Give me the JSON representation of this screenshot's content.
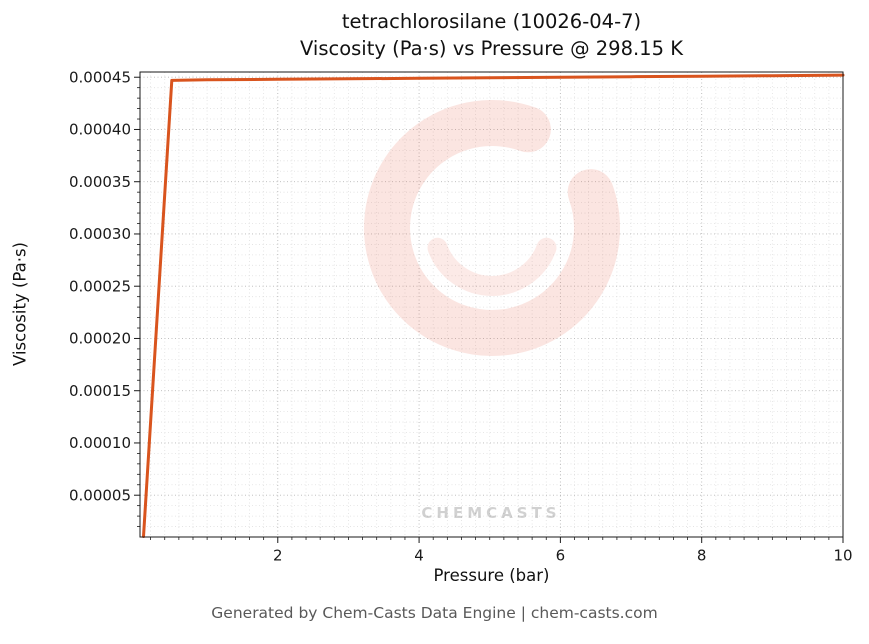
{
  "header": {
    "title_line1": "tetrachlorosilane (10026-04-7)",
    "title_line2": "Viscosity (Pa·s) vs Pressure @ 298.15 K"
  },
  "footer": {
    "text": "Generated by Chem-Casts Data Engine | chem-casts.com"
  },
  "watermark": {
    "text": "CHEMCASTS",
    "logo": "chemcasts-c-logo",
    "color": "#e75b47",
    "text_opacity": 0.2,
    "logo_opacity": 0.16
  },
  "chart_data": {
    "type": "line",
    "title": "tetrachlorosilane (10026-04-7) Viscosity (Pa·s) vs Pressure @ 298.15 K",
    "xlabel": "Pressure (bar)",
    "ylabel": "Viscosity (Pa·s)",
    "xlim": [
      0.05,
      10
    ],
    "ylim": [
      1e-05,
      0.000455
    ],
    "x_ticks": [
      2,
      4,
      6,
      8,
      10
    ],
    "y_ticks": [
      5e-05,
      0.0001,
      0.00015,
      0.0002,
      0.00025,
      0.0003,
      0.00035,
      0.0004,
      0.00045
    ],
    "x_minor_step": 0.2,
    "y_minor_step": 1e-05,
    "grid": true,
    "legend": "none",
    "line_color": "#d9541e",
    "line_width": 3,
    "series": [
      {
        "name": "viscosity",
        "x": [
          0.1,
          0.5,
          1,
          2,
          3,
          4,
          5,
          6,
          7,
          8,
          9,
          10
        ],
        "y": [
          1.05e-05,
          0.000447,
          0.0004475,
          0.000448,
          0.0004485,
          0.000449,
          0.0004495,
          0.00045,
          0.0004505,
          0.000451,
          0.0004515,
          0.000452
        ]
      }
    ]
  }
}
